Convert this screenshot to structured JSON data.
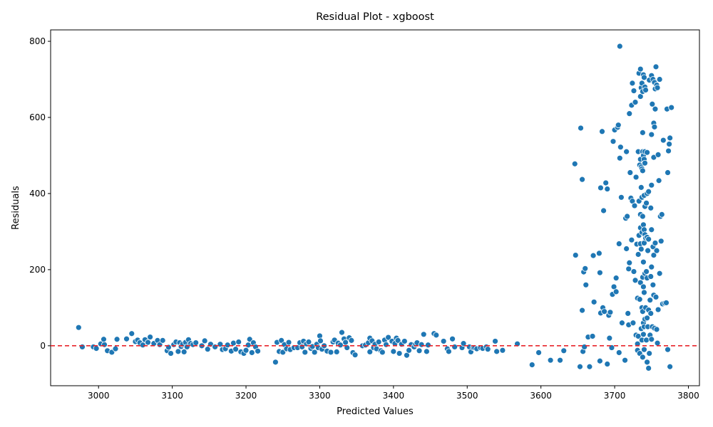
{
  "chart_data": {
    "type": "scatter",
    "title": "Residual Plot - xgboost",
    "xlabel": "Predicted Values",
    "ylabel": "Residuals",
    "xlim": [
      2935,
      3815
    ],
    "ylim": [
      -105,
      830
    ],
    "xticks": [
      3000,
      3100,
      3200,
      3300,
      3400,
      3500,
      3600,
      3700,
      3800
    ],
    "yticks": [
      0,
      200,
      400,
      600,
      800
    ],
    "reference_line": {
      "y": 0,
      "style": "dashed",
      "color": "#e8242b"
    },
    "marker_color": "#1f77b4",
    "grid": false,
    "points": [
      [
        2973,
        48
      ],
      [
        2978,
        -3
      ],
      [
        2993,
        -3
      ],
      [
        2997,
        -7
      ],
      [
        3003,
        5
      ],
      [
        3008,
        3
      ],
      [
        3007,
        17
      ],
      [
        3012,
        -13
      ],
      [
        3018,
        -17
      ],
      [
        3023,
        -8
      ],
      [
        3025,
        17
      ],
      [
        3038,
        18
      ],
      [
        3045,
        32
      ],
      [
        3050,
        11
      ],
      [
        3053,
        15
      ],
      [
        3056,
        8
      ],
      [
        3060,
        2
      ],
      [
        3063,
        16
      ],
      [
        3067,
        9
      ],
      [
        3070,
        23
      ],
      [
        3075,
        6
      ],
      [
        3080,
        14
      ],
      [
        3083,
        3
      ],
      [
        3087,
        14
      ],
      [
        3093,
        -13
      ],
      [
        3095,
        -4
      ],
      [
        3098,
        -20
      ],
      [
        3102,
        3
      ],
      [
        3105,
        10
      ],
      [
        3108,
        -15
      ],
      [
        3110,
        8
      ],
      [
        3112,
        -2
      ],
      [
        3114,
        4
      ],
      [
        3116,
        -16
      ],
      [
        3118,
        9
      ],
      [
        3120,
        -3
      ],
      [
        3122,
        16
      ],
      [
        3125,
        6
      ],
      [
        3128,
        3
      ],
      [
        3132,
        8
      ],
      [
        3140,
        0
      ],
      [
        3144,
        13
      ],
      [
        3148,
        -9
      ],
      [
        3152,
        4
      ],
      [
        3158,
        -3
      ],
      [
        3165,
        4
      ],
      [
        3168,
        -10
      ],
      [
        3172,
        -8
      ],
      [
        3175,
        2
      ],
      [
        3180,
        -14
      ],
      [
        3183,
        7
      ],
      [
        3186,
        -9
      ],
      [
        3190,
        10
      ],
      [
        3193,
        -16
      ],
      [
        3197,
        -20
      ],
      [
        3200,
        -12
      ],
      [
        3203,
        2
      ],
      [
        3205,
        17
      ],
      [
        3208,
        -18
      ],
      [
        3210,
        8
      ],
      [
        3213,
        -3
      ],
      [
        3216,
        -14
      ],
      [
        3240,
        -43
      ],
      [
        3242,
        9
      ],
      [
        3245,
        -15
      ],
      [
        3248,
        14
      ],
      [
        3250,
        -17
      ],
      [
        3252,
        3
      ],
      [
        3255,
        -8
      ],
      [
        3258,
        9
      ],
      [
        3260,
        -10
      ],
      [
        3265,
        -5
      ],
      [
        3270,
        -5
      ],
      [
        3273,
        8
      ],
      [
        3276,
        -3
      ],
      [
        3278,
        12
      ],
      [
        3280,
        -17
      ],
      [
        3282,
        5
      ],
      [
        3285,
        10
      ],
      [
        3288,
        -7
      ],
      [
        3290,
        -2
      ],
      [
        3293,
        -17
      ],
      [
        3296,
        4
      ],
      [
        3298,
        -5
      ],
      [
        3300,
        26
      ],
      [
        3301,
        13
      ],
      [
        3303,
        -9
      ],
      [
        3306,
        0
      ],
      [
        3310,
        -14
      ],
      [
        3315,
        -17
      ],
      [
        3318,
        10
      ],
      [
        3320,
        15
      ],
      [
        3323,
        -16
      ],
      [
        3325,
        7
      ],
      [
        3328,
        2
      ],
      [
        3330,
        35
      ],
      [
        3333,
        18
      ],
      [
        3335,
        9
      ],
      [
        3337,
        -5
      ],
      [
        3340,
        21
      ],
      [
        3343,
        14
      ],
      [
        3345,
        -18
      ],
      [
        3348,
        -24
      ],
      [
        3358,
        0
      ],
      [
        3362,
        2
      ],
      [
        3366,
        8
      ],
      [
        3368,
        20
      ],
      [
        3368,
        -16
      ],
      [
        3371,
        13
      ],
      [
        3373,
        -5
      ],
      [
        3375,
        4
      ],
      [
        3377,
        -8
      ],
      [
        3380,
        10
      ],
      [
        3383,
        -13
      ],
      [
        3385,
        -17
      ],
      [
        3388,
        15
      ],
      [
        3390,
        3
      ],
      [
        3393,
        22
      ],
      [
        3398,
        12
      ],
      [
        3400,
        -15
      ],
      [
        3402,
        6
      ],
      [
        3404,
        20
      ],
      [
        3406,
        14
      ],
      [
        3408,
        -20
      ],
      [
        3411,
        4
      ],
      [
        3415,
        12
      ],
      [
        3418,
        -25
      ],
      [
        3421,
        -12
      ],
      [
        3424,
        3
      ],
      [
        3428,
        -3
      ],
      [
        3430,
        4
      ],
      [
        3432,
        8
      ],
      [
        3435,
        -13
      ],
      [
        3438,
        3
      ],
      [
        3441,
        30
      ],
      [
        3445,
        -15
      ],
      [
        3447,
        2
      ],
      [
        3455,
        32
      ],
      [
        3458,
        28
      ],
      [
        3468,
        12
      ],
      [
        3473,
        -8
      ],
      [
        3475,
        -15
      ],
      [
        3480,
        18
      ],
      [
        3483,
        -3
      ],
      [
        3493,
        -5
      ],
      [
        3495,
        6
      ],
      [
        3503,
        -3
      ],
      [
        3505,
        -16
      ],
      [
        3508,
        -5
      ],
      [
        3510,
        -5
      ],
      [
        3513,
        -8
      ],
      [
        3518,
        -5
      ],
      [
        3521,
        -7
      ],
      [
        3526,
        -3
      ],
      [
        3528,
        -9
      ],
      [
        3538,
        12
      ],
      [
        3540,
        -15
      ],
      [
        3548,
        -12
      ],
      [
        3568,
        5
      ],
      [
        3588,
        -50
      ],
      [
        3597,
        -18
      ],
      [
        3613,
        -38
      ],
      [
        3626,
        -38
      ],
      [
        3631,
        -13
      ],
      [
        3646,
        478
      ],
      [
        3647,
        238
      ],
      [
        3653,
        -55
      ],
      [
        3654,
        572
      ],
      [
        3656,
        437
      ],
      [
        3656,
        93
      ],
      [
        3657,
        -15
      ],
      [
        3658,
        194
      ],
      [
        3659,
        -3
      ],
      [
        3660,
        203
      ],
      [
        3661,
        160
      ],
      [
        3664,
        23
      ],
      [
        3666,
        -55
      ],
      [
        3670,
        25
      ],
      [
        3671,
        237
      ],
      [
        3672,
        115
      ],
      [
        3679,
        243
      ],
      [
        3680,
        192
      ],
      [
        3680,
        -40
      ],
      [
        3681,
        415
      ],
      [
        3681,
        86
      ],
      [
        3683,
        563
      ],
      [
        3684,
        100
      ],
      [
        3685,
        355
      ],
      [
        3686,
        90
      ],
      [
        3688,
        428
      ],
      [
        3690,
        412
      ],
      [
        3690,
        -48
      ],
      [
        3692,
        80
      ],
      [
        3693,
        20
      ],
      [
        3694,
        88
      ],
      [
        3696,
        -5
      ],
      [
        3697,
        135
      ],
      [
        3698,
        537
      ],
      [
        3699,
        155
      ],
      [
        3700,
        567
      ],
      [
        3702,
        142
      ],
      [
        3702,
        178
      ],
      [
        3704,
        574
      ],
      [
        3705,
        580
      ],
      [
        3706,
        268
      ],
      [
        3706,
        -18
      ],
      [
        3707,
        787
      ],
      [
        3707,
        493
      ],
      [
        3708,
        522
      ],
      [
        3709,
        390
      ],
      [
        3710,
        60
      ],
      [
        3714,
        -38
      ],
      [
        3715,
        335
      ],
      [
        3716,
        510
      ],
      [
        3716,
        255
      ],
      [
        3717,
        340
      ],
      [
        3718,
        85
      ],
      [
        3719,
        202
      ],
      [
        3719,
        55
      ],
      [
        3720,
        610
      ],
      [
        3720,
        218
      ],
      [
        3721,
        455
      ],
      [
        3722,
        388
      ],
      [
        3723,
        632
      ],
      [
        3723,
        278
      ],
      [
        3724,
        690
      ],
      [
        3724,
        380
      ],
      [
        3725,
        60
      ],
      [
        3726,
        670
      ],
      [
        3726,
        195
      ],
      [
        3727,
        368
      ],
      [
        3728,
        640
      ],
      [
        3728,
        172
      ],
      [
        3729,
        443
      ],
      [
        3729,
        28
      ],
      [
        3730,
        267
      ],
      [
        3731,
        -12
      ],
      [
        3731,
        5
      ],
      [
        3731,
        125
      ],
      [
        3732,
        510
      ],
      [
        3732,
        240
      ],
      [
        3732,
        25
      ],
      [
        3733,
        716
      ],
      [
        3733,
        380
      ],
      [
        3733,
        290
      ],
      [
        3734,
        475
      ],
      [
        3734,
        122
      ],
      [
        3734,
        -20
      ],
      [
        3735,
        727
      ],
      [
        3735,
        655
      ],
      [
        3735,
        490
      ],
      [
        3735,
        345
      ],
      [
        3735,
        310
      ],
      [
        3735,
        268
      ],
      [
        3735,
        166
      ],
      [
        3736,
        678
      ],
      [
        3736,
        470
      ],
      [
        3736,
        416
      ],
      [
        3736,
        254
      ],
      [
        3736,
        45
      ],
      [
        3737,
        690
      ],
      [
        3737,
        465
      ],
      [
        3737,
        390
      ],
      [
        3737,
        298
      ],
      [
        3737,
        100
      ],
      [
        3737,
        15
      ],
      [
        3738,
        668
      ],
      [
        3738,
        560
      ],
      [
        3738,
        510
      ],
      [
        3738,
        460
      ],
      [
        3738,
        340
      ],
      [
        3738,
        180
      ],
      [
        3738,
        90
      ],
      [
        3738,
        -30
      ],
      [
        3739,
        712
      ],
      [
        3739,
        500
      ],
      [
        3739,
        318
      ],
      [
        3739,
        220
      ],
      [
        3739,
        155
      ],
      [
        3739,
        60
      ],
      [
        3739,
        30
      ],
      [
        3740,
        705
      ],
      [
        3740,
        490
      ],
      [
        3740,
        395
      ],
      [
        3740,
        305
      ],
      [
        3740,
        270
      ],
      [
        3740,
        140
      ],
      [
        3740,
        50
      ],
      [
        3740,
        -10
      ],
      [
        3741,
        680
      ],
      [
        3741,
        510
      ],
      [
        3741,
        480
      ],
      [
        3741,
        366
      ],
      [
        3741,
        292
      ],
      [
        3741,
        190
      ],
      [
        3741,
        70
      ],
      [
        3742,
        672
      ],
      [
        3742,
        283
      ],
      [
        3742,
        100
      ],
      [
        3743,
        375
      ],
      [
        3743,
        195
      ],
      [
        3743,
        15
      ],
      [
        3744,
        508
      ],
      [
        3744,
        400
      ],
      [
        3744,
        285
      ],
      [
        3744,
        178
      ],
      [
        3744,
        73
      ],
      [
        3744,
        -43
      ],
      [
        3745,
        250
      ],
      [
        3745,
        50
      ],
      [
        3746,
        405
      ],
      [
        3746,
        280
      ],
      [
        3746,
        94
      ],
      [
        3746,
        -59
      ],
      [
        3747,
        698
      ],
      [
        3747,
        -20
      ],
      [
        3748,
        120
      ],
      [
        3748,
        28
      ],
      [
        3749,
        362
      ],
      [
        3749,
        182
      ],
      [
        3749,
        85
      ],
      [
        3750,
        710
      ],
      [
        3750,
        555
      ],
      [
        3750,
        422
      ],
      [
        3750,
        305
      ],
      [
        3750,
        207
      ],
      [
        3750,
        17
      ],
      [
        3751,
        635
      ],
      [
        3751,
        50
      ],
      [
        3752,
        700
      ],
      [
        3752,
        260
      ],
      [
        3752,
        160
      ],
      [
        3753,
        585
      ],
      [
        3753,
        495
      ],
      [
        3753,
        238
      ],
      [
        3753,
        133
      ],
      [
        3754,
        692
      ],
      [
        3754,
        575
      ],
      [
        3754,
        46
      ],
      [
        3755,
        675
      ],
      [
        3755,
        622
      ],
      [
        3755,
        270
      ],
      [
        3756,
        733
      ],
      [
        3756,
        128
      ],
      [
        3757,
        685
      ],
      [
        3757,
        250
      ],
      [
        3757,
        43
      ],
      [
        3758,
        678
      ],
      [
        3758,
        7
      ],
      [
        3759,
        502
      ],
      [
        3759,
        95
      ],
      [
        3760,
        434
      ],
      [
        3761,
        700
      ],
      [
        3761,
        190
      ],
      [
        3762,
        340
      ],
      [
        3763,
        275
      ],
      [
        3764,
        345
      ],
      [
        3765,
        110
      ],
      [
        3766,
        540
      ],
      [
        3768,
        112
      ],
      [
        3770,
        113
      ],
      [
        3771,
        622
      ],
      [
        3772,
        455
      ],
      [
        3772,
        -10
      ],
      [
        3773,
        512
      ],
      [
        3774,
        530
      ],
      [
        3775,
        546
      ],
      [
        3775,
        -55
      ],
      [
        3777,
        626
      ]
    ]
  }
}
